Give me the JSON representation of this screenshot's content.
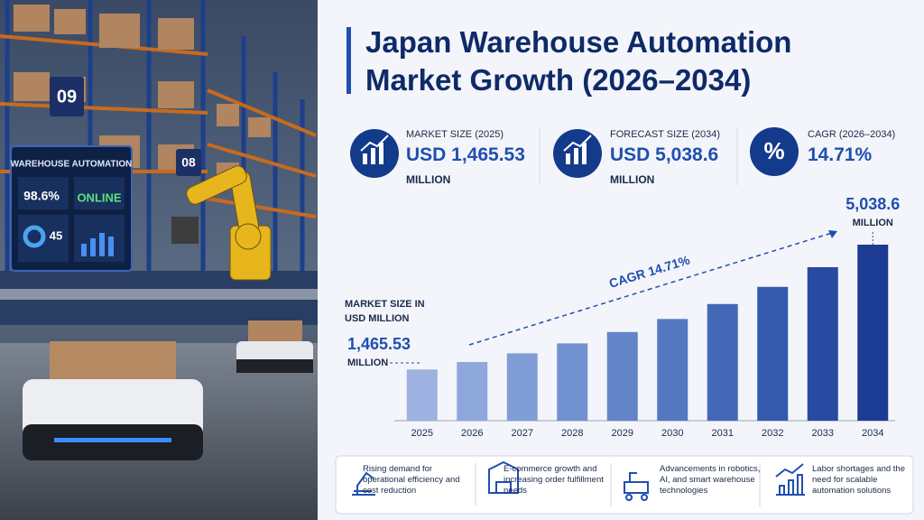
{
  "photo": {
    "screen_title": "WAREHOUSE AUTOMATION",
    "screen_rate": "98.6%",
    "screen_status": "ONLINE",
    "screen_count": "45",
    "aisle_1": "09",
    "aisle_2": "08"
  },
  "header": {
    "title": "Japan Warehouse Automation Market Growth (2026–2034)"
  },
  "stats": [
    {
      "label": "MARKET SIZE (2025)",
      "value": "USD 1,465.53",
      "unit": "MILLION"
    },
    {
      "label": "FORECAST SIZE (2034)",
      "value": "USD 5,038.6",
      "unit": "MILLION"
    },
    {
      "label": "CAGR (2026–2034)",
      "value": "14.71%",
      "icon": "%"
    }
  ],
  "chart_data": {
    "type": "bar",
    "y_label": "MARKET SIZE IN USD MILLION",
    "annotation": "CAGR 14.71%",
    "categories": [
      "2025",
      "2026",
      "2027",
      "2028",
      "2029",
      "2030",
      "2031",
      "2032",
      "2033",
      "2034"
    ],
    "values": [
      1465.53,
      1681,
      1928,
      2212,
      2538,
      2911,
      3339,
      3830,
      4394,
      5038.6
    ],
    "value_labels": [
      "1,465.53",
      null,
      null,
      null,
      null,
      null,
      null,
      null,
      null,
      "5,038.6"
    ],
    "value_unit": "MILLION",
    "colors": [
      "#9db2e0",
      "#8fa8dc",
      "#819dd6",
      "#7291d0",
      "#6384c9",
      "#5477c1",
      "#4468b7",
      "#3559ac",
      "#284aa0",
      "#1c3c93"
    ]
  },
  "drivers": [
    "Rising demand for operational efficiency and cost reduction",
    "E-commerce growth and increasing order fulfillment needs",
    "Advancements in robotics, AI, and smart warehouse technologies",
    "Labor shortages and the need for scalable automation solutions"
  ]
}
